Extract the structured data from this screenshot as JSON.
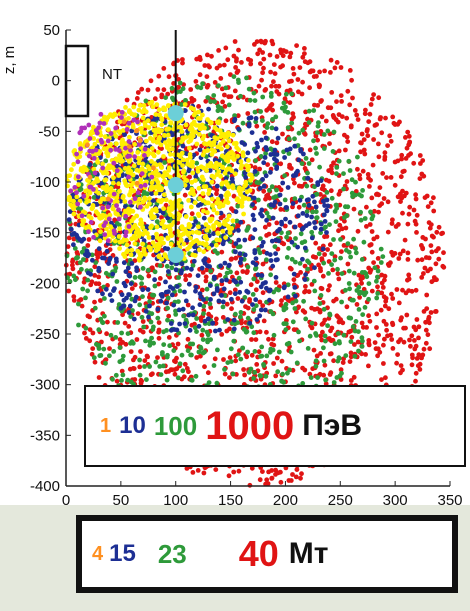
{
  "chart_data": {
    "type": "scatter",
    "title": "",
    "ylabel": "z, m",
    "xlabel": "",
    "xlim": [
      0,
      350
    ],
    "ylim": [
      -400,
      50
    ],
    "x_ticks": [
      0,
      50,
      100,
      150,
      200,
      250,
      300,
      350
    ],
    "y_ticks": [
      50,
      0,
      -50,
      -100,
      -150,
      -200,
      -250,
      -300,
      -350,
      -400
    ],
    "annotation": "NT",
    "string": {
      "x": 100,
      "z_top": 50,
      "z_bottom": -165,
      "modules_z": [
        -32,
        -103,
        -172
      ],
      "color": "#6ccfd8"
    },
    "series": [
      {
        "name": "1",
        "color": "#ff9020",
        "x_range": [
          10,
          90
        ],
        "z_range": [
          -130,
          -40
        ],
        "count": 10
      },
      {
        "name": "10",
        "color": "#1d2f94",
        "x_range": [
          0,
          240
        ],
        "z_range": [
          -250,
          -25
        ],
        "count": 650
      },
      {
        "name": "100",
        "color": "#2e9a3a",
        "x_range": [
          0,
          290
        ],
        "z_range": [
          -350,
          5
        ],
        "count": 900
      },
      {
        "name": "1000",
        "color": "#e01414",
        "x_range": [
          0,
          345
        ],
        "z_range": [
          -400,
          40
        ],
        "count": 1900
      },
      {
        "name": "yellow",
        "color": "#ffee00",
        "x_range": [
          0,
          170
        ],
        "z_range": [
          -180,
          -20
        ],
        "count": 950
      },
      {
        "name": "magenta",
        "color": "#b030b8",
        "x_range": [
          0,
          80
        ],
        "z_range": [
          -160,
          -25
        ],
        "count": 90
      }
    ]
  },
  "legend": {
    "e1": "1",
    "e10": "10",
    "e100": "100",
    "e1000": "1000",
    "unit": "ПэВ",
    "colors": {
      "e1": "#ff9020",
      "e10": "#1d2f94",
      "e100": "#2e9a3a",
      "e1000": "#e01414",
      "unit": "#111111"
    }
  },
  "mt_legend": {
    "v1": "4",
    "v2": "15",
    "v3": "23",
    "v4": "40",
    "unit": "Мт",
    "colors": {
      "v1": "#ff9020",
      "v2": "#1d2f94",
      "v3": "#2e9a3a",
      "v4": "#e01414",
      "unit": "#111111"
    }
  }
}
